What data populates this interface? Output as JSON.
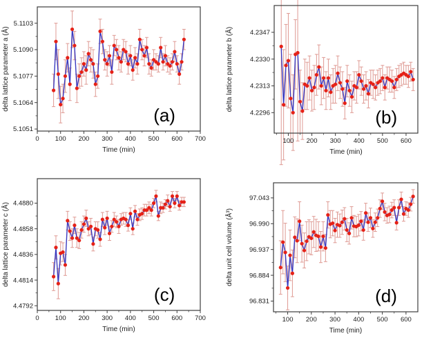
{
  "style": {
    "background": "#ffffff",
    "point_color": "#e52117",
    "line_color": "#3a3ac0",
    "error_color": "#d98880",
    "frame_color": "#3c3c3c",
    "text_color": "#1c1c1c"
  },
  "chart_data": [
    {
      "type": "line",
      "panel_label": "(a)",
      "xlabel": "Time (min)",
      "ylabel": "delta lattice parameter a (Å)",
      "xlim": [
        0,
        700
      ],
      "ylim": [
        5.105,
        5.1111
      ],
      "xticks": [
        0,
        100,
        200,
        300,
        400,
        500,
        600,
        700
      ],
      "x_minor_step": 50,
      "yticks": [
        "5.1051",
        "5.1064",
        "5.1077",
        "5.1090",
        "5.1103"
      ],
      "x": [
        70,
        80,
        90,
        100,
        110,
        120,
        130,
        140,
        150,
        160,
        170,
        180,
        190,
        200,
        210,
        220,
        230,
        240,
        250,
        260,
        270,
        280,
        290,
        300,
        310,
        320,
        330,
        340,
        350,
        360,
        370,
        380,
        390,
        400,
        410,
        420,
        430,
        440,
        450,
        460,
        470,
        480,
        490,
        500,
        510,
        520,
        530,
        540,
        550,
        560,
        570,
        580,
        590,
        600,
        610,
        620,
        630
      ],
      "y": [
        5.107,
        5.1094,
        5.1078,
        5.1063,
        5.1066,
        5.1077,
        5.1086,
        5.1073,
        5.11,
        5.1092,
        5.1071,
        5.1077,
        5.1079,
        5.1083,
        5.108,
        5.1088,
        5.1085,
        5.1083,
        5.1073,
        5.1077,
        5.1099,
        5.1094,
        5.1085,
        5.1083,
        5.1087,
        5.1079,
        5.1092,
        5.109,
        5.1086,
        5.1084,
        5.109,
        5.1089,
        5.1083,
        5.1087,
        5.108,
        5.1086,
        5.1083,
        5.1095,
        5.109,
        5.1087,
        5.1091,
        5.1083,
        5.1081,
        5.1085,
        5.1084,
        5.1083,
        5.1091,
        5.1084,
        5.1087,
        5.1083,
        5.1082,
        5.1084,
        5.1089,
        5.1083,
        5.1078,
        5.1084,
        5.1095
      ],
      "yerr": [
        0.0008,
        0.0009,
        0.0012,
        0.0009,
        0.0007,
        0.0008,
        0.0007,
        0.0008,
        0.0009,
        0.0007,
        0.0007,
        0.0006,
        0.0007,
        0.0006,
        0.0007,
        0.0006,
        0.0006,
        0.0007,
        0.0006,
        0.0006,
        0.0006,
        0.0006,
        0.0005,
        0.0006,
        0.0005,
        0.0006,
        0.0005,
        0.0005,
        0.0006,
        0.0005,
        0.0005,
        0.0005,
        0.0005,
        0.0005,
        0.0005,
        0.0005,
        0.0005,
        0.0005,
        0.0005,
        0.0005,
        0.0005,
        0.0005,
        0.0004,
        0.0005,
        0.0004,
        0.0004,
        0.0005,
        0.0004,
        0.0005,
        0.0004,
        0.0004,
        0.0004,
        0.0005,
        0.0004,
        0.0005,
        0.0004,
        0.0005
      ]
    },
    {
      "type": "line",
      "panel_label": "(b)",
      "xlabel": "Time (min)",
      "ylabel": "delta lattice parameter b (Å)",
      "xlim": [
        40,
        650
      ],
      "ylim": [
        4.2283,
        4.2364
      ],
      "xticks": [
        100,
        200,
        300,
        400,
        500,
        600
      ],
      "x_minor_step": 50,
      "yticks": [
        "4.2296",
        "4.2313",
        "4.2330",
        "4.2347"
      ],
      "x": [
        70,
        80,
        90,
        100,
        110,
        120,
        130,
        140,
        150,
        160,
        170,
        180,
        190,
        200,
        210,
        220,
        230,
        240,
        250,
        260,
        270,
        280,
        290,
        300,
        310,
        320,
        330,
        340,
        350,
        360,
        370,
        380,
        390,
        400,
        410,
        420,
        430,
        440,
        450,
        460,
        470,
        480,
        490,
        500,
        510,
        520,
        530,
        540,
        550,
        560,
        570,
        580,
        590,
        600,
        610,
        620,
        630
      ],
      "y": [
        4.2338,
        4.2301,
        4.2326,
        4.2329,
        4.2305,
        4.2296,
        4.2333,
        4.2334,
        4.2303,
        4.2297,
        4.2314,
        4.2313,
        4.2318,
        4.231,
        4.2312,
        4.232,
        4.2325,
        4.2313,
        4.2318,
        4.231,
        4.2318,
        4.2309,
        4.2313,
        4.2314,
        4.2321,
        4.2315,
        4.2311,
        4.2302,
        4.2316,
        4.231,
        4.2306,
        4.2313,
        4.2312,
        4.232,
        4.2316,
        4.2311,
        4.2313,
        4.2308,
        4.2315,
        4.2314,
        4.2312,
        4.2315,
        4.2316,
        4.2318,
        4.2312,
        4.2318,
        4.2317,
        4.2316,
        4.2312,
        4.2317,
        4.2319,
        4.232,
        4.2321,
        4.232,
        4.2319,
        4.2322,
        4.2317
      ],
      "yerr": [
        0.0075,
        0.0035,
        0.0026,
        0.003,
        0.0028,
        0.0024,
        0.0022,
        0.0056,
        0.002,
        0.0018,
        0.0016,
        0.0015,
        0.0014,
        0.0013,
        0.0014,
        0.0013,
        0.0014,
        0.0012,
        0.0013,
        0.0012,
        0.0012,
        0.0011,
        0.0011,
        0.0012,
        0.0011,
        0.001,
        0.0011,
        0.001,
        0.001,
        0.001,
        0.001,
        0.0009,
        0.001,
        0.0009,
        0.0009,
        0.0009,
        0.0009,
        0.0009,
        0.0008,
        0.0009,
        0.0008,
        0.0008,
        0.0008,
        0.0008,
        0.0008,
        0.0007,
        0.0008,
        0.0007,
        0.0007,
        0.0007,
        0.0007,
        0.0007,
        0.0007,
        0.0006,
        0.0007,
        0.0006,
        0.0007
      ]
    },
    {
      "type": "line",
      "panel_label": "(c)",
      "xlabel": "Time (min)",
      "ylabel": "delta lattice parameter c (Å)",
      "xlim": [
        0,
        700
      ],
      "ylim": [
        4.4788,
        4.4901
      ],
      "xticks": [
        0,
        100,
        200,
        300,
        400,
        500,
        600,
        700
      ],
      "x_minor_step": 50,
      "yticks": [
        "4.4792",
        "4.4814",
        "4.4836",
        "4.4858",
        "4.4880"
      ],
      "x": [
        70,
        80,
        90,
        100,
        110,
        120,
        130,
        140,
        150,
        160,
        170,
        180,
        190,
        200,
        210,
        220,
        230,
        240,
        250,
        260,
        270,
        280,
        290,
        300,
        310,
        320,
        330,
        340,
        350,
        360,
        370,
        380,
        390,
        400,
        410,
        420,
        430,
        440,
        450,
        460,
        470,
        480,
        490,
        500,
        510,
        520,
        530,
        540,
        550,
        560,
        570,
        580,
        590,
        600,
        610,
        620,
        630
      ],
      "y": [
        4.4817,
        4.4842,
        4.4811,
        4.4837,
        4.4838,
        4.4827,
        4.4865,
        4.4856,
        4.485,
        4.4861,
        4.485,
        4.4848,
        4.4857,
        4.4862,
        4.4867,
        4.4858,
        4.486,
        4.4845,
        4.4858,
        4.4857,
        4.4849,
        4.4866,
        4.4859,
        4.4867,
        4.4854,
        4.486,
        4.4866,
        4.4864,
        4.486,
        4.4866,
        4.4867,
        4.4866,
        4.4861,
        4.4871,
        4.4858,
        4.4873,
        4.4866,
        4.487,
        4.4871,
        4.4874,
        4.4874,
        4.4876,
        4.4874,
        4.488,
        4.4886,
        4.4869,
        4.4876,
        4.4876,
        4.4879,
        4.4882,
        4.4877,
        4.4886,
        4.488,
        4.4886,
        4.4878,
        4.4881,
        4.4881
      ],
      "yerr": [
        0.0012,
        0.001,
        0.0013,
        0.001,
        0.0008,
        0.0009,
        0.0008,
        0.0008,
        0.0008,
        0.0007,
        0.0008,
        0.0007,
        0.0007,
        0.0007,
        0.0007,
        0.0006,
        0.0007,
        0.0006,
        0.0006,
        0.0007,
        0.0006,
        0.0006,
        0.0006,
        0.0006,
        0.0006,
        0.0005,
        0.0006,
        0.0005,
        0.0006,
        0.0005,
        0.0005,
        0.0006,
        0.0005,
        0.0005,
        0.0005,
        0.0005,
        0.0005,
        0.0005,
        0.0005,
        0.0005,
        0.0005,
        0.0005,
        0.0005,
        0.0004,
        0.0005,
        0.0004,
        0.0005,
        0.0004,
        0.0004,
        0.0005,
        0.0004,
        0.0004,
        0.0004,
        0.0004,
        0.0004,
        0.0004,
        0.0004
      ]
    },
    {
      "type": "line",
      "panel_label": "(d)",
      "xlabel": "Time (min)",
      "ylabel": "delta unit cell volume (Å³)",
      "xlim": [
        40,
        650
      ],
      "ylim": [
        96.809,
        97.074
      ],
      "xticks": [
        100,
        200,
        300,
        400,
        500,
        600
      ],
      "x_minor_step": 50,
      "yticks": [
        "96.831",
        "96.884",
        "96.937",
        "96.990",
        "97.043"
      ],
      "x": [
        70,
        80,
        90,
        100,
        110,
        120,
        130,
        140,
        150,
        160,
        170,
        180,
        190,
        200,
        210,
        220,
        230,
        240,
        250,
        260,
        270,
        280,
        290,
        300,
        310,
        320,
        330,
        340,
        350,
        360,
        370,
        380,
        390,
        400,
        410,
        420,
        430,
        440,
        450,
        460,
        470,
        480,
        490,
        500,
        510,
        520,
        530,
        540,
        550,
        560,
        570,
        580,
        590,
        600,
        610,
        620,
        630
      ],
      "y": [
        96.9,
        96.952,
        96.931,
        96.858,
        96.925,
        96.888,
        96.962,
        96.955,
        96.995,
        96.949,
        96.935,
        96.954,
        96.963,
        96.96,
        96.973,
        96.966,
        96.964,
        96.942,
        96.964,
        96.94,
        97.008,
        96.989,
        96.991,
        96.976,
        96.988,
        96.986,
        96.993,
        97.0,
        96.977,
        96.97,
        97.002,
        96.985,
        96.984,
        96.987,
        96.995,
        96.977,
        97.012,
        96.993,
        97.002,
        96.98,
        96.993,
        97.002,
        97.021,
        97.036,
        97.014,
        97.007,
        97.009,
        97.018,
        97.023,
        96.992,
        97.023,
        97.04,
        97.01,
        97.021,
        97.018,
        97.03,
        97.046
      ],
      "yerr": [
        0.055,
        0.065,
        0.06,
        0.045,
        0.052,
        0.048,
        0.042,
        0.045,
        0.04,
        0.038,
        0.036,
        0.04,
        0.035,
        0.034,
        0.032,
        0.033,
        0.03,
        0.032,
        0.03,
        0.028,
        0.027,
        0.028,
        0.026,
        0.025,
        0.026,
        0.024,
        0.025,
        0.023,
        0.024,
        0.022,
        0.023,
        0.022,
        0.021,
        0.022,
        0.02,
        0.021,
        0.02,
        0.019,
        0.02,
        0.018,
        0.019,
        0.018,
        0.018,
        0.017,
        0.018,
        0.016,
        0.017,
        0.016,
        0.016,
        0.015,
        0.016,
        0.015,
        0.015,
        0.014,
        0.015,
        0.014,
        0.014
      ]
    }
  ]
}
